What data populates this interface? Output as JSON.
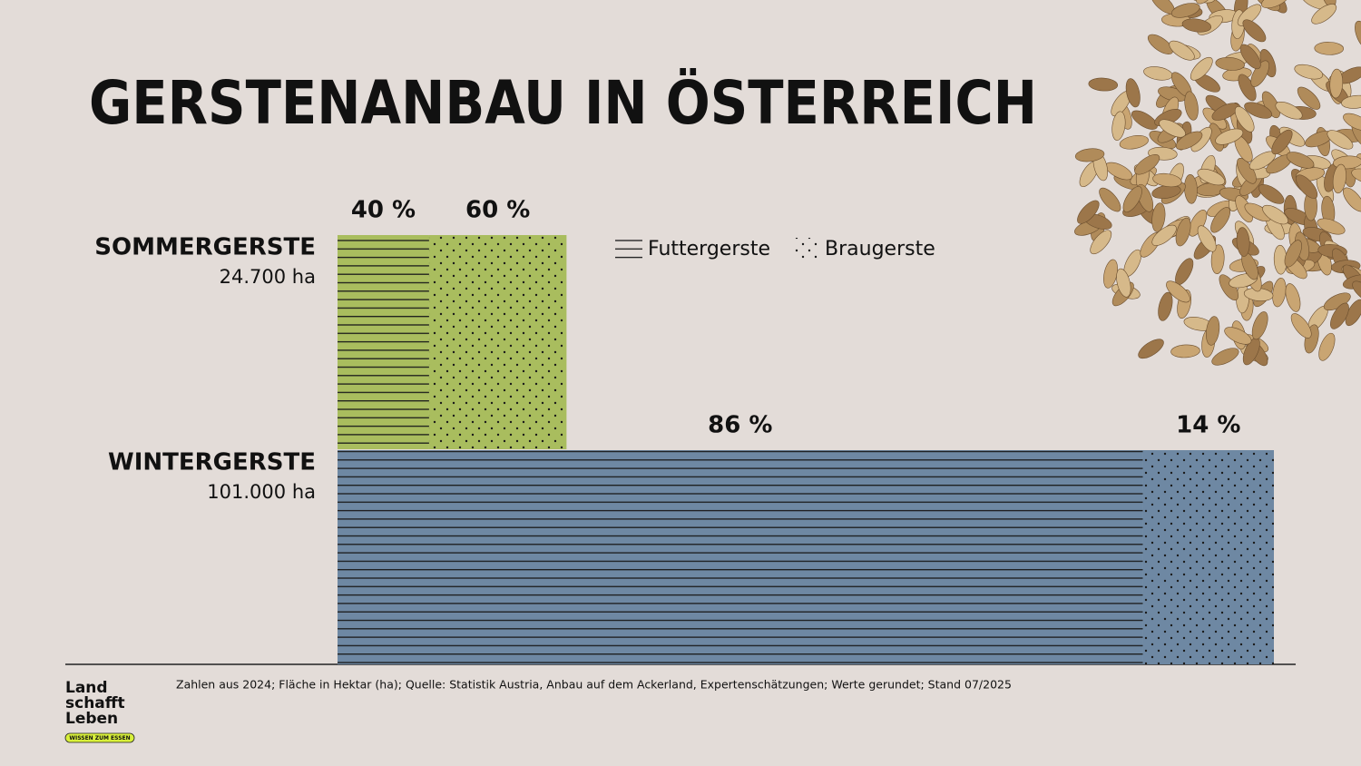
{
  "chart_data": {
    "type": "marimekko",
    "title": "GERSTENANBAU IN ÖSTERREICH",
    "categories": [
      "SOMMERGERSTE",
      "WINTERGERSTE"
    ],
    "totals": [
      24700,
      101000
    ],
    "total_labels": [
      "24.700 ha",
      "101.000 ha"
    ],
    "category_colors": [
      "#a9bd5e",
      "#6e88a3"
    ],
    "series": [
      {
        "name": "Futtergerste",
        "pattern": "lines",
        "values": [
          40,
          86
        ],
        "value_labels": [
          "40 %",
          "86 %"
        ]
      },
      {
        "name": "Braugerste",
        "pattern": "dots",
        "values": [
          60,
          14
        ],
        "value_labels": [
          "60 %",
          "14 %"
        ]
      }
    ],
    "note": "Zahlen aus 2024; Fläche in Hektar (ha); Quelle: Statistik Austria, Anbau auf dem Ackerland, Expertenschätzungen; Werte gerundet; Stand 07/2025"
  },
  "logo": {
    "lines": [
      "Land",
      "schafft",
      "Leben"
    ],
    "tagline": "WISSEN ZUM ESSEN"
  }
}
